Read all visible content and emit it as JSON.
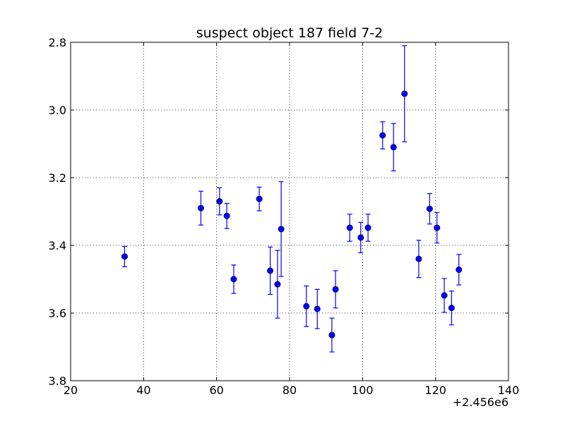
{
  "chart_data": {
    "type": "scatter",
    "title": "suspect object 187 field 7-2",
    "xlabel": "",
    "ylabel": "",
    "x_offset_label": "+2.456e6",
    "xlim": [
      20,
      140
    ],
    "ylim": [
      3.8,
      2.8
    ],
    "y_inverted": true,
    "grid": true,
    "marker_color": "#0000ff",
    "x_ticks": [
      20,
      40,
      60,
      80,
      100,
      120,
      140
    ],
    "y_ticks": [
      2.8,
      3.0,
      3.2,
      3.4,
      3.6,
      3.8
    ],
    "x_tick_labels": [
      "20",
      "40",
      "60",
      "80",
      "100",
      "120",
      "140"
    ],
    "y_tick_labels": [
      "2.8",
      "3.0",
      "3.2",
      "3.4",
      "3.6",
      "3.8"
    ],
    "series": [
      {
        "points": [
          {
            "x": 34.8,
            "y": 3.433,
            "err": 0.03
          },
          {
            "x": 55.7,
            "y": 3.29,
            "err": 0.05
          },
          {
            "x": 60.8,
            "y": 3.27,
            "err": 0.04
          },
          {
            "x": 62.8,
            "y": 3.313,
            "err": 0.037
          },
          {
            "x": 64.7,
            "y": 3.5,
            "err": 0.042
          },
          {
            "x": 71.7,
            "y": 3.263,
            "err": 0.035
          },
          {
            "x": 74.7,
            "y": 3.475,
            "err": 0.07
          },
          {
            "x": 76.7,
            "y": 3.515,
            "err": 0.1
          },
          {
            "x": 77.7,
            "y": 3.352,
            "err": 0.14
          },
          {
            "x": 84.6,
            "y": 3.58,
            "err": 0.06
          },
          {
            "x": 87.6,
            "y": 3.588,
            "err": 0.058
          },
          {
            "x": 91.6,
            "y": 3.665,
            "err": 0.05
          },
          {
            "x": 92.6,
            "y": 3.53,
            "err": 0.055
          },
          {
            "x": 96.5,
            "y": 3.348,
            "err": 0.04
          },
          {
            "x": 99.5,
            "y": 3.377,
            "err": 0.045
          },
          {
            "x": 101.5,
            "y": 3.348,
            "err": 0.04
          },
          {
            "x": 105.5,
            "y": 3.075,
            "err": 0.04
          },
          {
            "x": 108.5,
            "y": 3.11,
            "err": 0.07
          },
          {
            "x": 111.5,
            "y": 2.952,
            "err": 0.142
          },
          {
            "x": 115.4,
            "y": 3.44,
            "err": 0.055
          },
          {
            "x": 118.4,
            "y": 3.292,
            "err": 0.045
          },
          {
            "x": 120.4,
            "y": 3.348,
            "err": 0.045
          },
          {
            "x": 122.4,
            "y": 3.548,
            "err": 0.05
          },
          {
            "x": 124.4,
            "y": 3.585,
            "err": 0.05
          },
          {
            "x": 126.4,
            "y": 3.472,
            "err": 0.045
          }
        ]
      }
    ]
  }
}
